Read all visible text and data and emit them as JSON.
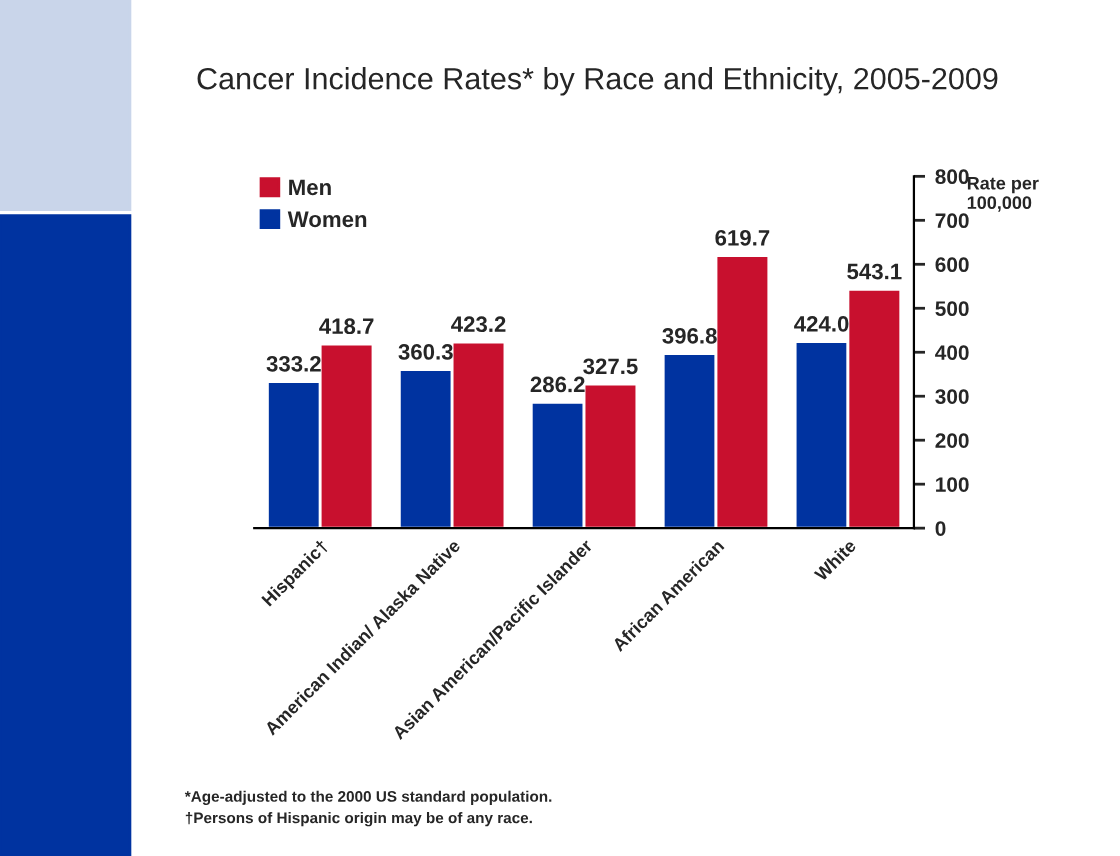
{
  "chart_data": {
    "type": "bar",
    "title": "Cancer Incidence Rates* by Race and Ethnicity, 2005-2009",
    "categories": [
      "Hispanic†",
      "American Indian/ Alaska Native",
      "Asian American/Pacific Islander",
      "African American",
      "White"
    ],
    "series": [
      {
        "name": "Women",
        "color": "#0033a0",
        "values": [
          333.2,
          360.3,
          286.2,
          396.8,
          424.0
        ],
        "value_labels": [
          "333.2",
          "360.3",
          "286.2",
          "396.8",
          "424.0"
        ]
      },
      {
        "name": "Men",
        "color": "#c8102e",
        "values": [
          418.7,
          423.2,
          327.5,
          619.7,
          543.1
        ],
        "value_labels": [
          "418.7",
          "423.2",
          "327.5",
          "619.7",
          "543.1"
        ]
      }
    ],
    "ylabel": "Rate per\n100,000",
    "ylim": [
      0,
      800
    ],
    "yticks": [
      0,
      100,
      200,
      300,
      400,
      500,
      600,
      700,
      800
    ],
    "legend": "top left",
    "grid": false,
    "annotations": [
      "*Age-adjusted to the 2000 US standard population.",
      "†Persons of Hispanic origin may be of any race."
    ]
  }
}
